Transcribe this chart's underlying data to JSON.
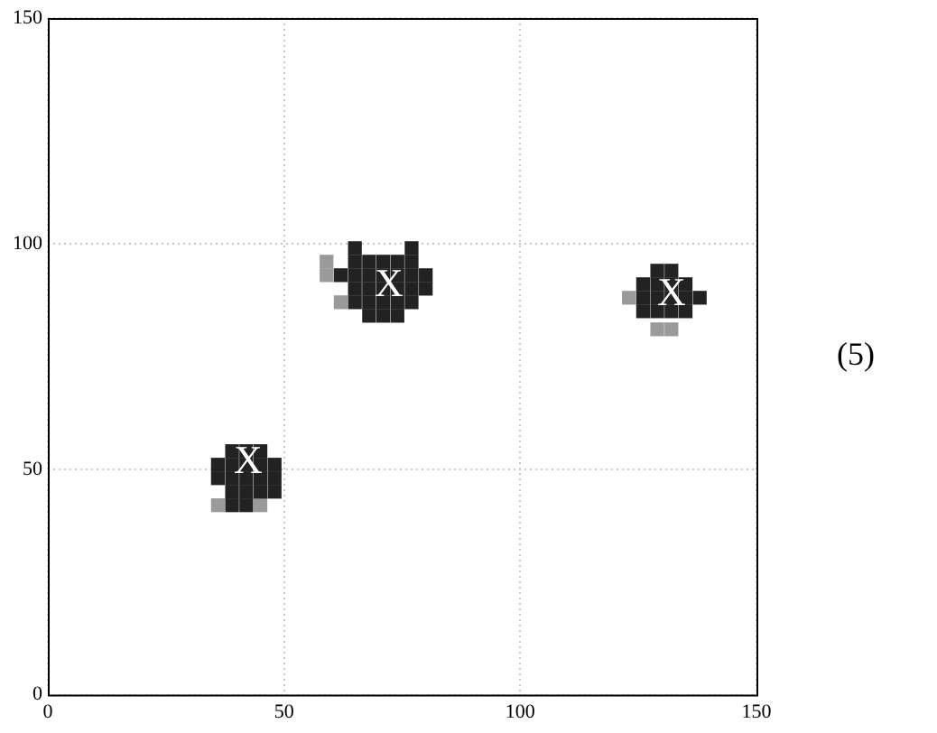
{
  "chart_data": {
    "type": "scatter",
    "marker": "square",
    "grid": true,
    "xlim": [
      0,
      150
    ],
    "ylim": [
      0,
      150
    ],
    "xticks": [
      0,
      50,
      100,
      150
    ],
    "yticks": [
      0,
      50,
      100,
      150
    ],
    "series": [
      {
        "color": "#222222",
        "x": [
          39,
          42,
          45,
          36,
          39,
          42,
          45,
          48,
          36,
          39,
          42,
          45,
          48,
          39,
          42,
          45,
          48,
          39,
          42,
          65,
          77,
          65,
          68,
          71,
          74,
          77,
          62,
          65,
          68,
          71,
          74,
          77,
          80,
          65,
          68,
          71,
          74,
          77,
          80,
          65,
          68,
          71,
          74,
          77,
          68,
          71,
          74,
          129,
          132,
          126,
          129,
          132,
          135,
          126,
          129,
          132,
          135,
          138,
          126,
          129,
          132,
          135
        ],
        "values": [
          54,
          54,
          54,
          51,
          51,
          51,
          51,
          51,
          48,
          48,
          48,
          48,
          48,
          45,
          45,
          45,
          45,
          42,
          42,
          99,
          99,
          96,
          96,
          96,
          96,
          96,
          93,
          93,
          93,
          93,
          93,
          93,
          93,
          90,
          90,
          90,
          90,
          90,
          90,
          87,
          87,
          87,
          87,
          87,
          84,
          84,
          84,
          94,
          94,
          91,
          91,
          91,
          91,
          88,
          88,
          88,
          88,
          88,
          85,
          85,
          85,
          85
        ]
      },
      {
        "color": "#9a9a9a",
        "x": [
          36,
          45,
          59,
          59,
          62,
          132,
          123,
          129
        ],
        "values": [
          42,
          42,
          96,
          93,
          87,
          81,
          88,
          81
        ]
      }
    ],
    "annotations": [
      {
        "text": "X",
        "x": 42.4,
        "y": 51.4
      },
      {
        "text": "X",
        "x": 72.2,
        "y": 90.7
      },
      {
        "text": "X",
        "x": 132,
        "y": 88.7
      },
      "(5)"
    ]
  }
}
